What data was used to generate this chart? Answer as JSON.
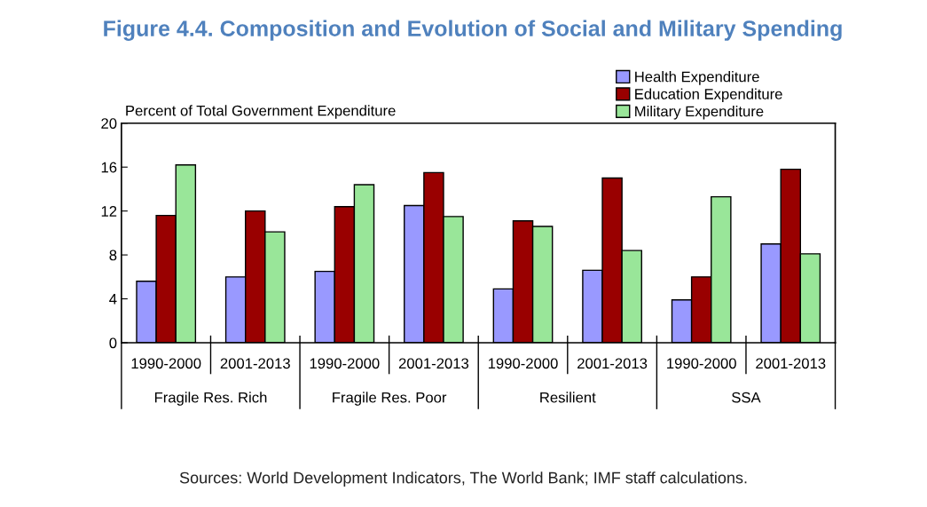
{
  "chart_data": {
    "type": "bar",
    "title": "Figure 4.4. Composition and Evolution of Social and Military Spending",
    "ylabel": "Percent of Total Government Expenditure",
    "categories": [
      "1990-2000",
      "2001-2013",
      "1990-2000",
      "2001-2013",
      "1990-2000",
      "2001-2013",
      "1990-2000",
      "2001-2013"
    ],
    "series": [
      {
        "name": "Health Expenditure",
        "color": "#9999ff",
        "values": [
          5.6,
          6.0,
          6.5,
          12.5,
          4.9,
          6.6,
          3.9,
          9.0
        ]
      },
      {
        "name": "Education Expenditure",
        "color": "#990000",
        "values": [
          11.6,
          12.0,
          12.4,
          15.5,
          11.1,
          15.0,
          6.0,
          15.8
        ]
      },
      {
        "name": "Military Expenditure",
        "color": "#99e699",
        "values": [
          16.2,
          10.1,
          14.4,
          11.5,
          10.6,
          8.4,
          13.3,
          8.1
        ]
      }
    ],
    "ylim": [
      0,
      20
    ],
    "yticks": [
      0,
      4,
      8,
      12,
      16,
      20
    ],
    "grid": false,
    "legend": "top right",
    "annotations": [
      "Fragile Res. Rich",
      "Fragile Res. Poor",
      "Resilient",
      "SSA",
      "Sources: World Development Indicators, The World Bank; IMF staff calculations."
    ]
  }
}
